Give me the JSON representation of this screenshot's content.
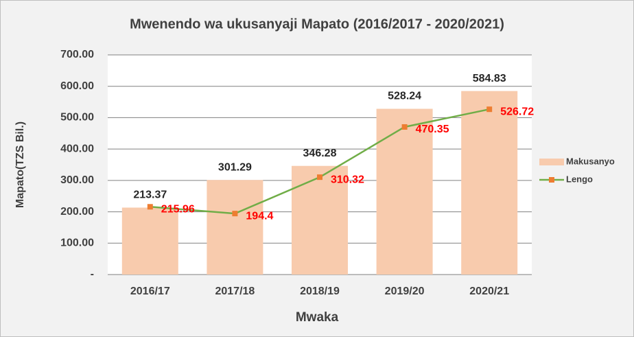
{
  "chart_data": {
    "type": "bar",
    "title": "Mwenendo wa ukusanyaji Mapato (2016/2017 - 2020/2021)",
    "x_label": "Mwaka",
    "y_label": "Mapato(TZS Bil.)",
    "categories": [
      "2016/17",
      "2017/18",
      "2018/19",
      "2019/20",
      "2020/21"
    ],
    "series": [
      {
        "name": "Makusanyo",
        "type": "bar",
        "color": "#f8cbad",
        "label_color": "#262626",
        "values": [
          213.37,
          301.29,
          346.28,
          528.24,
          584.83
        ]
      },
      {
        "name": "Lengo",
        "type": "line",
        "color": "#70ad47",
        "marker_color": "#ed7d31",
        "label_color": "#ff0000",
        "values": [
          215.96,
          194.4,
          310.32,
          470.35,
          526.72
        ]
      }
    ],
    "ylim": [
      0,
      700
    ],
    "yticks": [
      {
        "value": 0,
        "label": "-"
      },
      {
        "value": 100,
        "label": "100.00"
      },
      {
        "value": 200,
        "label": "200.00"
      },
      {
        "value": 300,
        "label": "300.00"
      },
      {
        "value": 400,
        "label": "400.00"
      },
      {
        "value": 500,
        "label": "500.00"
      },
      {
        "value": 600,
        "label": "600.00"
      },
      {
        "value": 700,
        "label": "700.00"
      }
    ],
    "grid": true,
    "legend": "right"
  }
}
